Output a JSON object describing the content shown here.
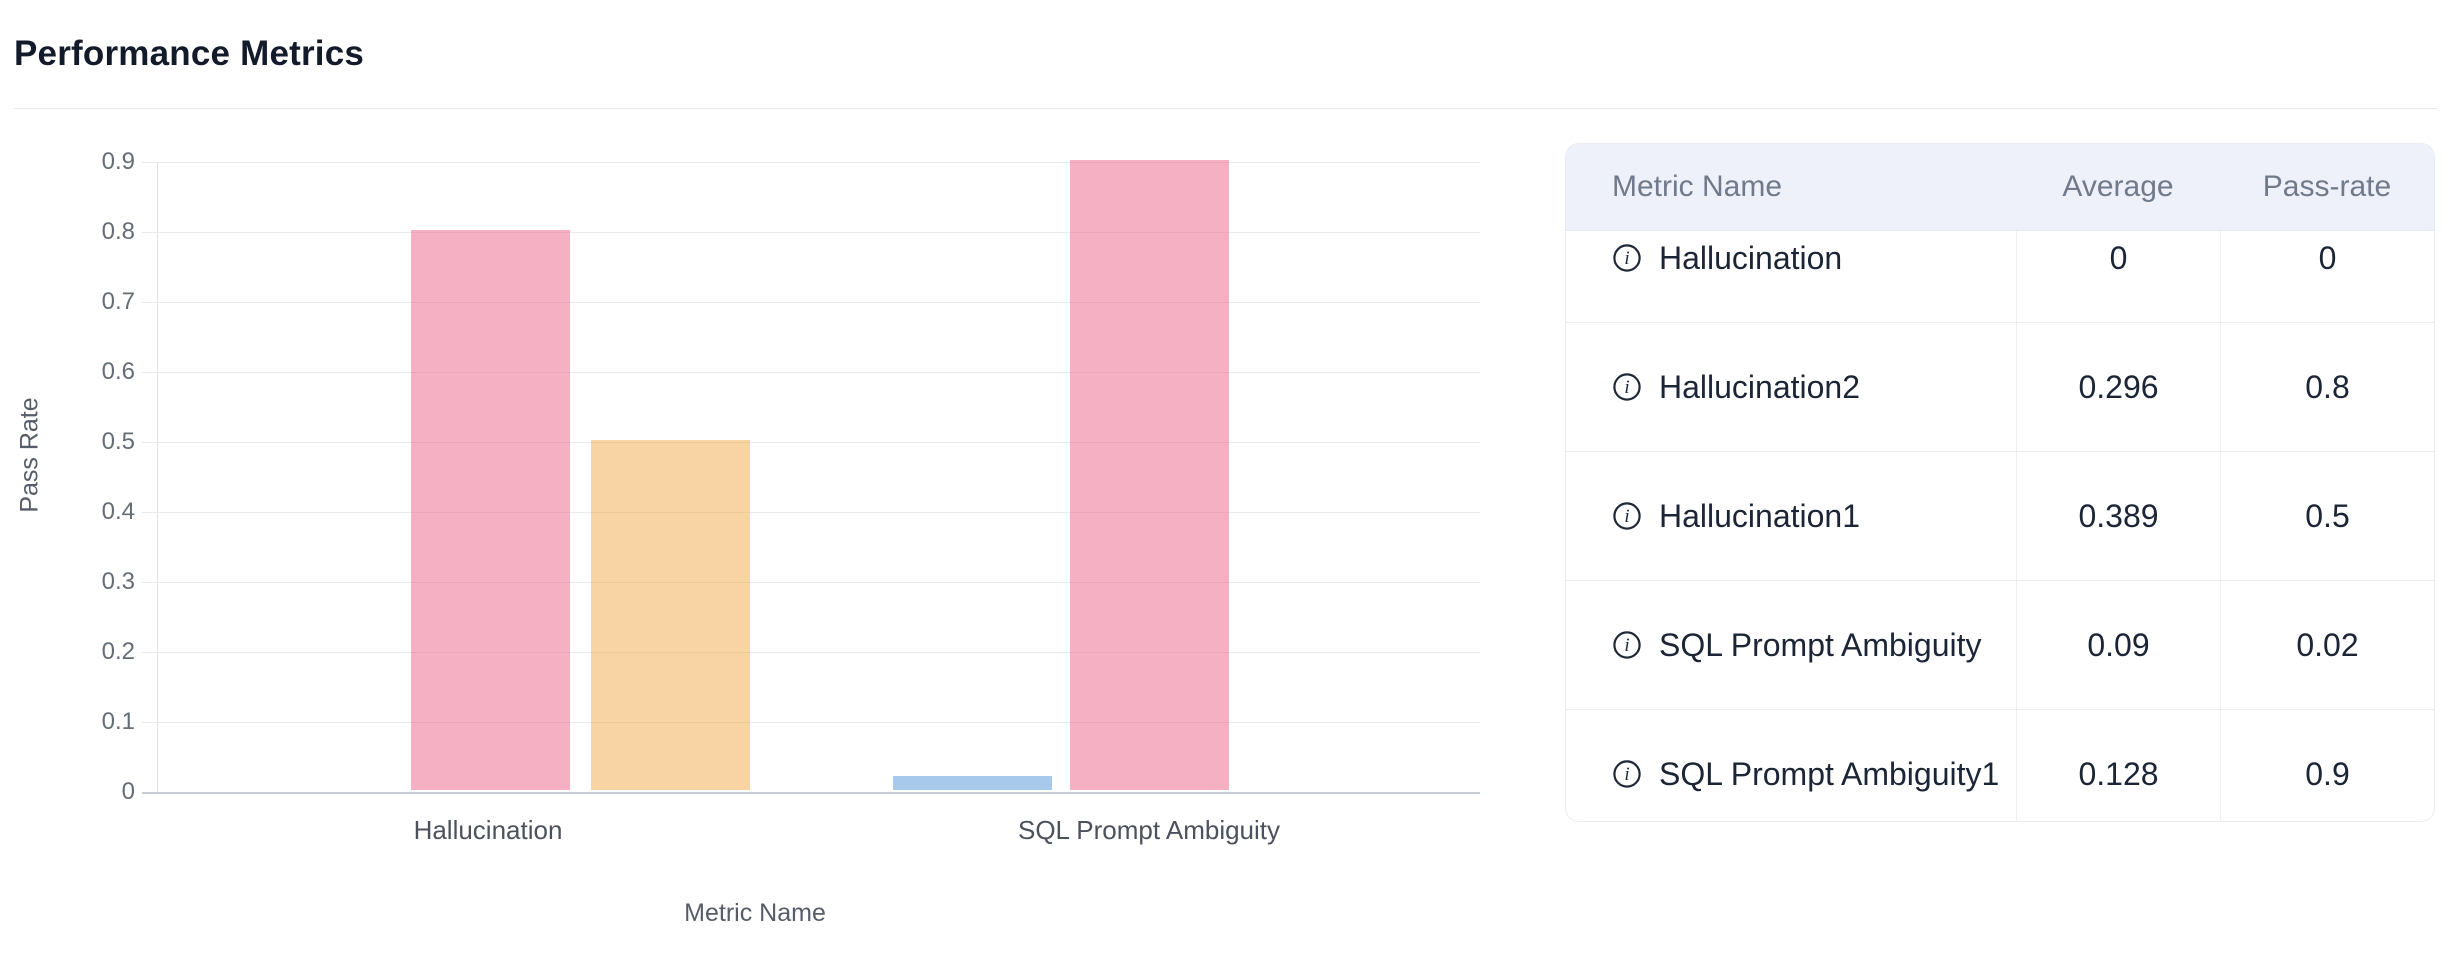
{
  "header": {
    "title": "Performance Metrics"
  },
  "chart_data": {
    "type": "bar",
    "title": "",
    "xlabel": "Metric Name",
    "ylabel": "Pass Rate",
    "ylim": [
      0,
      0.9
    ],
    "yticks": [
      "0",
      "0.1",
      "0.2",
      "0.3",
      "0.4",
      "0.5",
      "0.6",
      "0.7",
      "0.8",
      "0.9"
    ],
    "grid": true,
    "legend": false,
    "categories": [
      "Hallucination",
      "SQL Prompt Ambiguity"
    ],
    "bars": [
      {
        "category": "Hallucination",
        "metric": "Hallucination2",
        "value": 0.8,
        "color": "rgba(235,99,135,0.5)"
      },
      {
        "category": "Hallucination",
        "metric": "Hallucination1",
        "value": 0.5,
        "color": "rgba(241,167,71,0.5)"
      },
      {
        "category": "SQL Prompt Ambiguity",
        "metric": "SQL Prompt Ambiguity",
        "value": 0.02,
        "color": "rgba(79,149,217,0.5)"
      },
      {
        "category": "SQL Prompt Ambiguity",
        "metric": "SQL Prompt Ambiguity1",
        "value": 0.9,
        "color": "rgba(235,99,135,0.5)"
      }
    ]
  },
  "table": {
    "columns": [
      "Metric Name",
      "Average",
      "Pass-rate"
    ],
    "row_icon": "info-icon",
    "rows": [
      {
        "metric": "Hallucination",
        "average": "0",
        "pass_rate": "0"
      },
      {
        "metric": "Hallucination2",
        "average": "0.296",
        "pass_rate": "0.8"
      },
      {
        "metric": "Hallucination1",
        "average": "0.389",
        "pass_rate": "0.5"
      },
      {
        "metric": "SQL Prompt Ambiguity",
        "average": "0.09",
        "pass_rate": "0.02"
      },
      {
        "metric": "SQL Prompt Ambiguity1",
        "average": "0.128",
        "pass_rate": "0.9"
      }
    ]
  },
  "colors": {
    "table_header_bg": "#eef0fa",
    "bar_pink": "#f5b1c1",
    "bar_orange": "#f8d3a3",
    "bar_blue": "#a7caec",
    "gridline": "#e8eaec",
    "text_dark": "#1c2536",
    "text_gray": "#717a8a"
  }
}
